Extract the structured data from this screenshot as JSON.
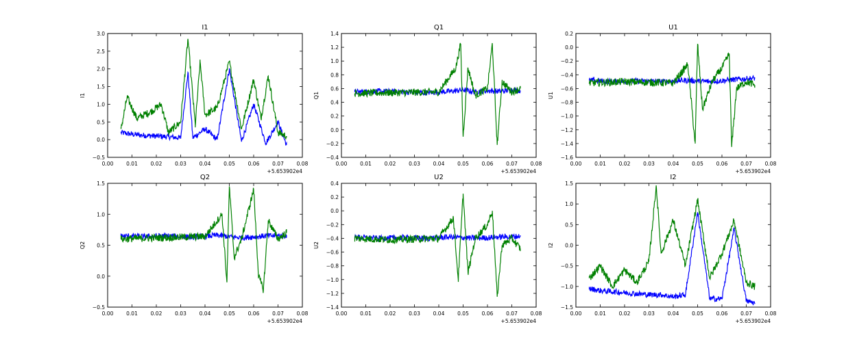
{
  "figure": {
    "grid": false,
    "legend": "none",
    "colors": {
      "series_a": "#0000ff",
      "series_b": "#008000"
    }
  },
  "chart_data": [
    {
      "type": "line",
      "title": "I1",
      "ylabel": "I1",
      "xlim": [
        0.0,
        0.08
      ],
      "ylim": [
        -0.5,
        3.0
      ],
      "x_offset_label": "+5.653902e4",
      "xticks": [
        "0.00",
        "0.01",
        "0.02",
        "0.03",
        "0.04",
        "0.05",
        "0.06",
        "0.07",
        "0.08"
      ],
      "yticks": [
        "−0.5",
        "0.0",
        "0.5",
        "1.0",
        "1.5",
        "2.0",
        "2.5",
        "3.0"
      ],
      "series": [
        {
          "color": "#0000ff",
          "x": [
            0.0055,
            0.01,
            0.015,
            0.02,
            0.025,
            0.03,
            0.033,
            0.035,
            0.04,
            0.045,
            0.05,
            0.055,
            0.06,
            0.065,
            0.07,
            0.0735
          ],
          "y": [
            0.2,
            0.15,
            0.12,
            0.1,
            0.08,
            0.05,
            1.9,
            0.05,
            0.3,
            0.0,
            2.0,
            -0.05,
            1.0,
            -0.1,
            0.5,
            -0.15
          ]
        },
        {
          "color": "#008000",
          "x": [
            0.0055,
            0.008,
            0.012,
            0.018,
            0.022,
            0.025,
            0.03,
            0.033,
            0.036,
            0.038,
            0.04,
            0.045,
            0.05,
            0.055,
            0.06,
            0.063,
            0.066,
            0.07,
            0.0735
          ],
          "y": [
            0.3,
            1.2,
            0.6,
            0.8,
            1.0,
            0.2,
            0.5,
            2.85,
            0.4,
            2.2,
            0.7,
            0.9,
            2.2,
            0.3,
            1.7,
            0.6,
            1.8,
            0.2,
            0.1
          ]
        }
      ]
    },
    {
      "type": "line",
      "title": "Q1",
      "ylabel": "Q1",
      "xlim": [
        0.0,
        0.08
      ],
      "ylim": [
        -0.4,
        1.4
      ],
      "x_offset_label": "+5.653902e4",
      "xticks": [
        "0.00",
        "0.01",
        "0.02",
        "0.03",
        "0.04",
        "0.05",
        "0.06",
        "0.07",
        "0.08"
      ],
      "yticks": [
        "−0.4",
        "−0.2",
        "0.0",
        "0.2",
        "0.4",
        "0.6",
        "0.8",
        "1.0",
        "1.2",
        "1.4"
      ],
      "series": [
        {
          "color": "#0000ff",
          "x": [
            0.0055,
            0.015,
            0.025,
            0.035,
            0.045,
            0.05,
            0.055,
            0.06,
            0.065,
            0.07,
            0.0735
          ],
          "y": [
            0.55,
            0.56,
            0.55,
            0.54,
            0.56,
            0.58,
            0.55,
            0.57,
            0.56,
            0.58,
            0.57
          ]
        },
        {
          "color": "#008000",
          "x": [
            0.0055,
            0.02,
            0.04,
            0.047,
            0.049,
            0.05,
            0.052,
            0.055,
            0.06,
            0.062,
            0.064,
            0.066,
            0.07,
            0.0735
          ],
          "y": [
            0.53,
            0.54,
            0.55,
            0.9,
            1.25,
            -0.1,
            0.9,
            0.5,
            0.6,
            1.25,
            -0.22,
            0.7,
            0.55,
            0.6
          ]
        }
      ]
    },
    {
      "type": "line",
      "title": "U1",
      "ylabel": "U1",
      "xlim": [
        0.0,
        0.08
      ],
      "ylim": [
        -1.6,
        0.2
      ],
      "x_offset_label": "+5.653902e4",
      "xticks": [
        "0.00",
        "0.01",
        "0.02",
        "0.03",
        "0.04",
        "0.05",
        "0.06",
        "0.07",
        "0.08"
      ],
      "yticks": [
        "−1.6",
        "−1.4",
        "−1.2",
        "−1.0",
        "−0.8",
        "−0.6",
        "−0.4",
        "−0.2",
        "0.0",
        "0.2"
      ],
      "series": [
        {
          "color": "#0000ff",
          "x": [
            0.0055,
            0.015,
            0.025,
            0.035,
            0.045,
            0.055,
            0.065,
            0.0735
          ],
          "y": [
            -0.48,
            -0.5,
            -0.49,
            -0.5,
            -0.48,
            -0.5,
            -0.47,
            -0.45
          ]
        },
        {
          "color": "#008000",
          "x": [
            0.0055,
            0.02,
            0.04,
            0.046,
            0.049,
            0.05,
            0.052,
            0.056,
            0.06,
            0.063,
            0.064,
            0.066,
            0.07,
            0.0735
          ],
          "y": [
            -0.52,
            -0.5,
            -0.52,
            -0.25,
            -1.4,
            0.05,
            -0.9,
            -0.5,
            -0.3,
            -0.1,
            -1.45,
            -0.6,
            -0.5,
            -0.55
          ]
        }
      ]
    },
    {
      "type": "line",
      "title": "Q2",
      "ylabel": "Q2",
      "xlim": [
        0.0,
        0.08
      ],
      "ylim": [
        -0.5,
        1.5
      ],
      "x_offset_label": "+5.653902e4",
      "xticks": [
        "0.00",
        "0.01",
        "0.02",
        "0.03",
        "0.04",
        "0.05",
        "0.06",
        "0.07",
        "0.08"
      ],
      "yticks": [
        "−0.5",
        "0.0",
        "0.5",
        "1.0",
        "1.5"
      ],
      "series": [
        {
          "color": "#0000ff",
          "x": [
            0.0055,
            0.015,
            0.025,
            0.035,
            0.045,
            0.055,
            0.065,
            0.0735
          ],
          "y": [
            0.65,
            0.64,
            0.65,
            0.63,
            0.66,
            0.62,
            0.65,
            0.66
          ]
        },
        {
          "color": "#008000",
          "x": [
            0.0055,
            0.02,
            0.04,
            0.047,
            0.049,
            0.05,
            0.052,
            0.055,
            0.06,
            0.062,
            0.064,
            0.066,
            0.07,
            0.0735
          ],
          "y": [
            0.6,
            0.62,
            0.64,
            1.0,
            -0.1,
            1.45,
            0.3,
            0.6,
            1.4,
            0.0,
            -0.22,
            0.9,
            0.6,
            0.7
          ]
        }
      ]
    },
    {
      "type": "line",
      "title": "U2",
      "ylabel": "U2",
      "xlim": [
        0.0,
        0.08
      ],
      "ylim": [
        -1.4,
        0.4
      ],
      "x_offset_label": "+5.653902e4",
      "xticks": [
        "0.00",
        "0.01",
        "0.02",
        "0.03",
        "0.04",
        "0.05",
        "0.06",
        "0.07",
        "0.08"
      ],
      "yticks": [
        "−1.4",
        "−1.2",
        "−1.0",
        "−0.8",
        "−0.6",
        "−0.4",
        "−0.2",
        "0.0",
        "0.2",
        "0.4"
      ],
      "series": [
        {
          "color": "#0000ff",
          "x": [
            0.0055,
            0.015,
            0.025,
            0.035,
            0.045,
            0.055,
            0.065,
            0.0735
          ],
          "y": [
            -0.38,
            -0.4,
            -0.39,
            -0.4,
            -0.38,
            -0.4,
            -0.38,
            -0.37
          ]
        },
        {
          "color": "#008000",
          "x": [
            0.0055,
            0.02,
            0.04,
            0.046,
            0.048,
            0.05,
            0.052,
            0.055,
            0.06,
            0.062,
            0.064,
            0.066,
            0.07,
            0.0735
          ],
          "y": [
            -0.4,
            -0.42,
            -0.4,
            -0.1,
            -1.0,
            0.25,
            -0.9,
            -0.4,
            -0.2,
            0.0,
            -1.25,
            -0.5,
            -0.4,
            -0.55
          ]
        }
      ]
    },
    {
      "type": "line",
      "title": "I2",
      "ylabel": "I2",
      "xlim": [
        0.0,
        0.08
      ],
      "ylim": [
        -1.5,
        1.5
      ],
      "x_offset_label": "+5.653902e4",
      "xticks": [
        "0.00",
        "0.01",
        "0.02",
        "0.03",
        "0.04",
        "0.05",
        "0.06",
        "0.07",
        "0.08"
      ],
      "yticks": [
        "−1.5",
        "−1.0",
        "−0.5",
        "0.0",
        "0.5",
        "1.0",
        "1.5"
      ],
      "series": [
        {
          "color": "#0000ff",
          "x": [
            0.0055,
            0.01,
            0.02,
            0.03,
            0.035,
            0.04,
            0.045,
            0.05,
            0.055,
            0.06,
            0.065,
            0.07,
            0.0735
          ],
          "y": [
            -1.05,
            -1.1,
            -1.15,
            -1.2,
            -1.2,
            -1.25,
            -1.2,
            0.8,
            -1.3,
            -1.3,
            0.4,
            -1.35,
            -1.4
          ]
        },
        {
          "color": "#008000",
          "x": [
            0.0055,
            0.01,
            0.015,
            0.02,
            0.025,
            0.03,
            0.033,
            0.035,
            0.04,
            0.045,
            0.05,
            0.055,
            0.06,
            0.065,
            0.07,
            0.0735
          ],
          "y": [
            -0.8,
            -0.5,
            -1.0,
            -0.6,
            -0.9,
            -0.4,
            1.45,
            -0.2,
            0.6,
            -0.5,
            1.1,
            -0.8,
            -0.2,
            0.6,
            -0.9,
            -1.0
          ]
        }
      ]
    }
  ]
}
